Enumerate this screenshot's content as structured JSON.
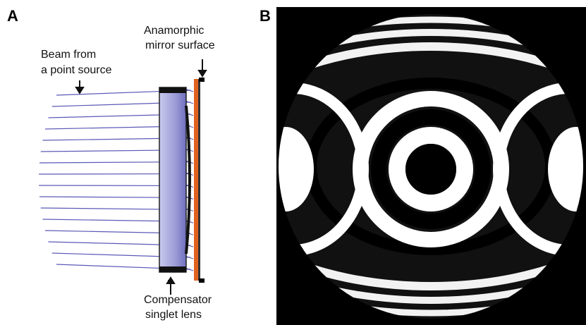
{
  "panels": [
    {
      "label": "A",
      "annotations": [
        {
          "lines": [
            "Anamorphic",
            "mirror surface"
          ]
        },
        {
          "lines": [
            "Beam from",
            "a point source"
          ]
        },
        {
          "lines": [
            "Compensator",
            "singlet lens"
          ]
        }
      ]
    },
    {
      "label": "B"
    }
  ]
}
